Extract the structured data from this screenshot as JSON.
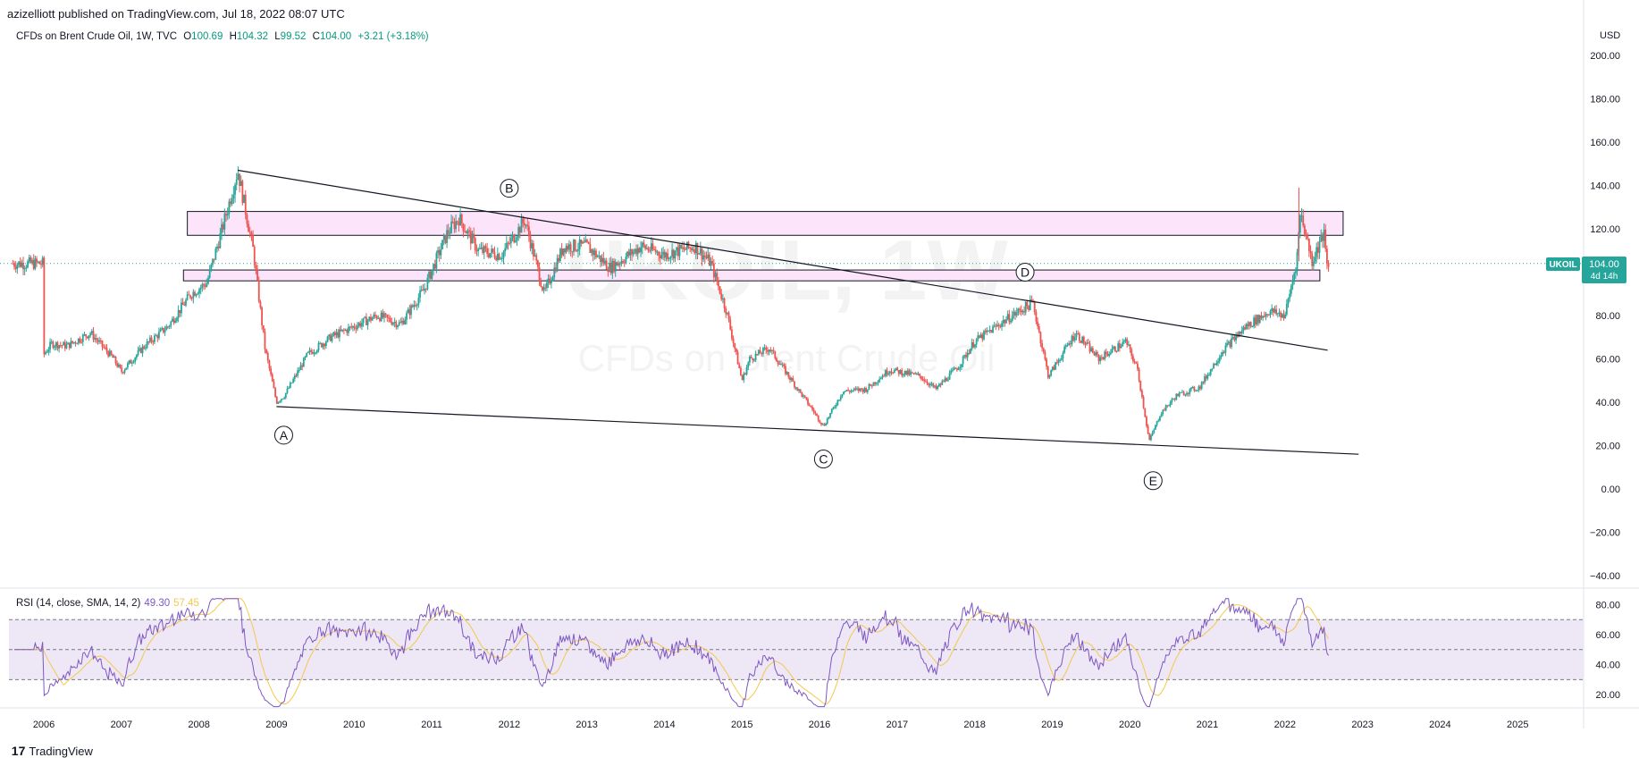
{
  "header": {
    "published": "azizelliott published on TradingView.com, Jul 18, 2022 08:07 UTC"
  },
  "legend": {
    "title": "CFDs on Brent Crude Oil, 1W, TVC",
    "open_label": "O",
    "open": "100.69",
    "high_label": "H",
    "high": "104.32",
    "low_label": "L",
    "low": "99.52",
    "close_label": "C",
    "close": "104.00",
    "change": "+3.21 (+3.18%)"
  },
  "watermark": {
    "symbol": "UKOIL, 1W",
    "name": "CFDs on Brent Crude Oil"
  },
  "price_axis": {
    "currency": "USD",
    "ticks": [
      "200.00",
      "180.00",
      "160.00",
      "140.00",
      "120.00",
      "100.00",
      "80.00",
      "60.00",
      "40.00",
      "20.00",
      "0.00",
      "−20.00",
      "−40.00"
    ]
  },
  "price_tag": {
    "symbol": "UKOIL",
    "price": "104.00",
    "countdown": "4d 14h"
  },
  "rsi": {
    "label": "RSI (14, close, SMA, 14, 2)",
    "value": "49.30",
    "sma_value": "57.45",
    "ticks": [
      "80.00",
      "60.00",
      "40.00",
      "20.00"
    ]
  },
  "time_axis": {
    "labels": [
      "2006",
      "2007",
      "2008",
      "2009",
      "2010",
      "2011",
      "2012",
      "2013",
      "2014",
      "2015",
      "2016",
      "2017",
      "2018",
      "2019",
      "2020",
      "2021",
      "2022",
      "2023",
      "2024",
      "2025"
    ]
  },
  "wave_labels": [
    "A",
    "B",
    "C",
    "D",
    "E"
  ],
  "footer": {
    "brand": "TradingView"
  },
  "colors": {
    "up": "#26a69a",
    "down": "#ef5350",
    "rsi_line": "#7e57c2",
    "rsi_sma": "#f5c84c",
    "zone_fill": "#fce4fb",
    "rsi_band": "#ede7f6",
    "tag": "#26a69a"
  },
  "chart_data": {
    "type": "candlestick",
    "symbol": "UKOIL",
    "timeframe": "1W",
    "ylim": [
      -40,
      200
    ],
    "price_path": [
      [
        2006.0,
        62
      ],
      [
        2006.1,
        67
      ],
      [
        2006.3,
        66
      ],
      [
        2006.6,
        72
      ],
      [
        2006.9,
        60
      ],
      [
        2007.0,
        54
      ],
      [
        2007.3,
        66
      ],
      [
        2007.6,
        75
      ],
      [
        2007.9,
        90
      ],
      [
        2008.1,
        95
      ],
      [
        2008.3,
        120
      ],
      [
        2008.5,
        147
      ],
      [
        2008.7,
        110
      ],
      [
        2008.85,
        65
      ],
      [
        2009.0,
        40
      ],
      [
        2009.1,
        43
      ],
      [
        2009.4,
        62
      ],
      [
        2009.7,
        70
      ],
      [
        2010.0,
        75
      ],
      [
        2010.3,
        80
      ],
      [
        2010.6,
        76
      ],
      [
        2010.9,
        92
      ],
      [
        2011.2,
        118
      ],
      [
        2011.35,
        125
      ],
      [
        2011.6,
        110
      ],
      [
        2011.9,
        108
      ],
      [
        2012.2,
        124
      ],
      [
        2012.45,
        90
      ],
      [
        2012.7,
        112
      ],
      [
        2013.0,
        112
      ],
      [
        2013.3,
        102
      ],
      [
        2013.7,
        112
      ],
      [
        2014.0,
        108
      ],
      [
        2014.4,
        112
      ],
      [
        2014.6,
        104
      ],
      [
        2014.8,
        82
      ],
      [
        2015.0,
        50
      ],
      [
        2015.1,
        60
      ],
      [
        2015.35,
        65
      ],
      [
        2015.7,
        47
      ],
      [
        2015.9,
        37
      ],
      [
        2016.05,
        29
      ],
      [
        2016.3,
        45
      ],
      [
        2016.6,
        46
      ],
      [
        2016.9,
        55
      ],
      [
        2017.3,
        52
      ],
      [
        2017.5,
        46
      ],
      [
        2017.8,
        57
      ],
      [
        2018.0,
        68
      ],
      [
        2018.4,
        78
      ],
      [
        2018.75,
        86
      ],
      [
        2018.95,
        52
      ],
      [
        2019.3,
        72
      ],
      [
        2019.6,
        60
      ],
      [
        2019.95,
        68
      ],
      [
        2020.1,
        55
      ],
      [
        2020.25,
        22
      ],
      [
        2020.4,
        35
      ],
      [
        2020.6,
        43
      ],
      [
        2020.9,
        47
      ],
      [
        2021.2,
        64
      ],
      [
        2021.5,
        75
      ],
      [
        2021.8,
        82
      ],
      [
        2022.0,
        80
      ],
      [
        2022.15,
        105
      ],
      [
        2022.2,
        128
      ],
      [
        2022.35,
        105
      ],
      [
        2022.5,
        118
      ],
      [
        2022.55,
        100
      ],
      [
        2022.57,
        104
      ]
    ],
    "annotations": {
      "resistance_zone": [
        117,
        128
      ],
      "support_zone": [
        96,
        101
      ],
      "waves": [
        {
          "label": "A",
          "x": 2009.0,
          "y": 38
        },
        {
          "label": "B",
          "x": 2012.0,
          "y": 128
        },
        {
          "label": "C",
          "x": 2016.05,
          "y": 27
        },
        {
          "label": "D",
          "x": 2018.65,
          "y": 100
        },
        {
          "label": "E",
          "x": 2020.3,
          "y": 17
        }
      ],
      "upper_trendline": [
        [
          2008.5,
          147
        ],
        [
          2022.55,
          64
        ]
      ],
      "lower_trendline": [
        [
          2009.0,
          38
        ],
        [
          2022.95,
          16
        ]
      ]
    },
    "rsi": {
      "period": 14,
      "ylim": [
        10,
        85
      ],
      "bands": [
        30,
        70
      ],
      "last": 49.3
    },
    "x_range": [
      2005.55,
      2025.85
    ]
  }
}
